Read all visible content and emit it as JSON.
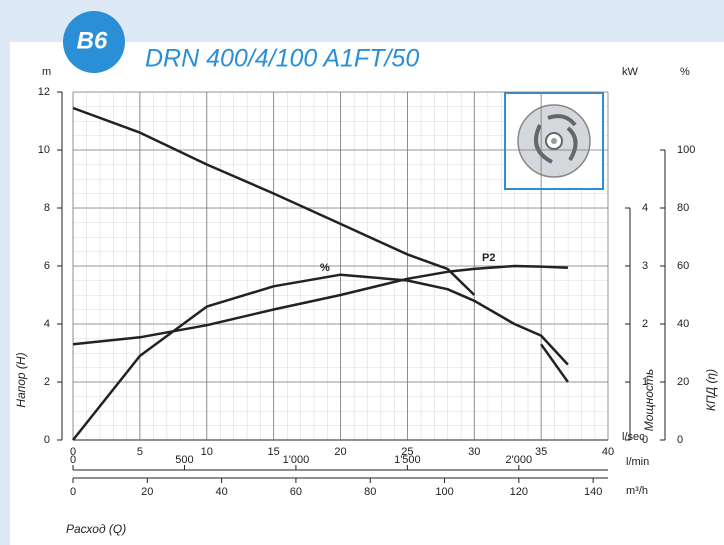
{
  "chart_data": {
    "type": "line",
    "badge": "B6",
    "title": "DRN 400/4/100 A1FT/50",
    "x": [
      0,
      5,
      10,
      15,
      20,
      25,
      28,
      30,
      33,
      35,
      37
    ],
    "series": [
      {
        "color": "#222222",
        "values": [
          11.45,
          10.6,
          9.5,
          8.5,
          7.45,
          6.4,
          5.9,
          5.0,
          null,
          3.3,
          2.0
        ]
      },
      {
        "label": "P2",
        "axis": "y2",
        "color": "#222222",
        "values": [
          1.65,
          1.77,
          1.98,
          2.25,
          2.5,
          2.78,
          2.9,
          2.95,
          3.0,
          2.99,
          2.97
        ]
      },
      {
        "label": "%",
        "axis": "y3",
        "color": "#222222",
        "values": [
          0,
          29,
          46,
          53,
          57,
          55,
          52,
          48,
          40,
          36,
          26
        ]
      }
    ],
    "xlim": [
      0,
      40
    ],
    "xticks": [
      0,
      5,
      10,
      15,
      20,
      25,
      30,
      35,
      40
    ],
    "x_unit": "l/sec",
    "x2lim": [
      0,
      2400
    ],
    "x2ticks": [
      0,
      500,
      {
        "value": 1000,
        "label": "1'000"
      },
      {
        "value": 1500,
        "label": "1'500"
      },
      {
        "value": 2000,
        "label": "2'000"
      }
    ],
    "x2_unit": "l/min",
    "x3lim": [
      0,
      144
    ],
    "x3ticks": [
      0,
      20,
      40,
      60,
      80,
      100,
      120,
      140
    ],
    "x3_unit": "m³/h",
    "x_label": "Расход (Q)",
    "ylim": [
      0,
      12
    ],
    "yticks": [
      0,
      2,
      4,
      6,
      8,
      10,
      12
    ],
    "y_unit": "m",
    "y_label": "Напор (H)",
    "y2lim": [
      0,
      6
    ],
    "y2ticks": [
      0,
      1,
      2,
      3,
      4
    ],
    "y2_unit": "kW",
    "y2_label": "Мощность",
    "y3lim": [
      0,
      120
    ],
    "y3ticks": [
      0,
      20,
      40,
      60,
      80,
      100
    ],
    "y3_unit": "%",
    "y3_label": "КПД (η)",
    "grid": true
  }
}
